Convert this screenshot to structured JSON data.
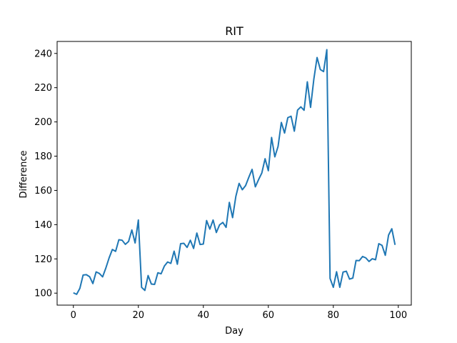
{
  "chart_data": {
    "type": "line",
    "title": "RIT",
    "xlabel": "Day",
    "ylabel": "Difference",
    "xlim": [
      -5,
      104
    ],
    "ylim": [
      93,
      247
    ],
    "xticks": [
      0,
      20,
      40,
      60,
      80,
      100
    ],
    "yticks": [
      100,
      120,
      140,
      160,
      180,
      200,
      220,
      240
    ],
    "grid": false,
    "line_color": "#1f77b4",
    "series": [
      {
        "x": [
          0,
          1,
          2,
          3,
          4,
          5,
          6,
          7,
          8,
          9,
          10,
          11,
          12,
          13,
          14,
          15,
          16,
          17,
          18,
          19,
          20,
          21,
          22,
          23,
          24,
          25,
          26,
          27,
          28,
          29,
          30,
          31,
          32,
          33,
          34,
          35,
          36,
          37,
          38,
          39,
          40,
          41,
          42,
          43,
          44,
          45,
          46,
          47,
          48,
          49,
          50,
          51,
          52,
          53,
          54,
          55,
          56,
          57,
          58,
          59,
          60,
          61,
          62,
          63,
          64,
          65,
          66,
          67,
          68,
          69,
          70,
          71,
          72,
          73,
          74,
          75,
          76,
          77,
          78,
          79,
          80,
          81,
          82,
          83,
          84,
          85,
          86,
          87,
          88,
          89,
          90,
          91,
          92,
          93,
          94,
          95,
          96,
          97,
          98,
          99
        ],
        "values": [
          100.2,
          99.3,
          102.8,
          110.6,
          110.8,
          109.6,
          105.6,
          112.4,
          111.5,
          109.5,
          114.7,
          120.6,
          125.5,
          124.4,
          131.2,
          130.9,
          128.5,
          130.2,
          136.9,
          129.3,
          142.7,
          103.4,
          101.6,
          110.3,
          105.3,
          105.1,
          111.9,
          111.3,
          115.8,
          118.2,
          117.4,
          124.5,
          116.9,
          128.9,
          129.1,
          126.7,
          130.9,
          126.1,
          135.1,
          128.4,
          128.7,
          142.4,
          137.4,
          142.7,
          135.4,
          139.9,
          141.3,
          138.4,
          153.0,
          144.1,
          156.5,
          164.1,
          160.4,
          162.8,
          167.7,
          172.3,
          162.1,
          166.3,
          170.2,
          178.5,
          171.5,
          190.9,
          179.6,
          185.7,
          199.7,
          193.5,
          202.5,
          203.3,
          194.6,
          206.9,
          208.8,
          206.8,
          223.4,
          208.5,
          224.9,
          237.6,
          230.6,
          229.4,
          242.2,
          108.6,
          103.4,
          112.5,
          103.4,
          112.3,
          112.8,
          108.2,
          108.8,
          119.1,
          119.0,
          121.4,
          120.6,
          118.5,
          120.1,
          119.5,
          128.9,
          127.9,
          122.1,
          133.9,
          137.6,
          128.2
        ]
      }
    ]
  }
}
